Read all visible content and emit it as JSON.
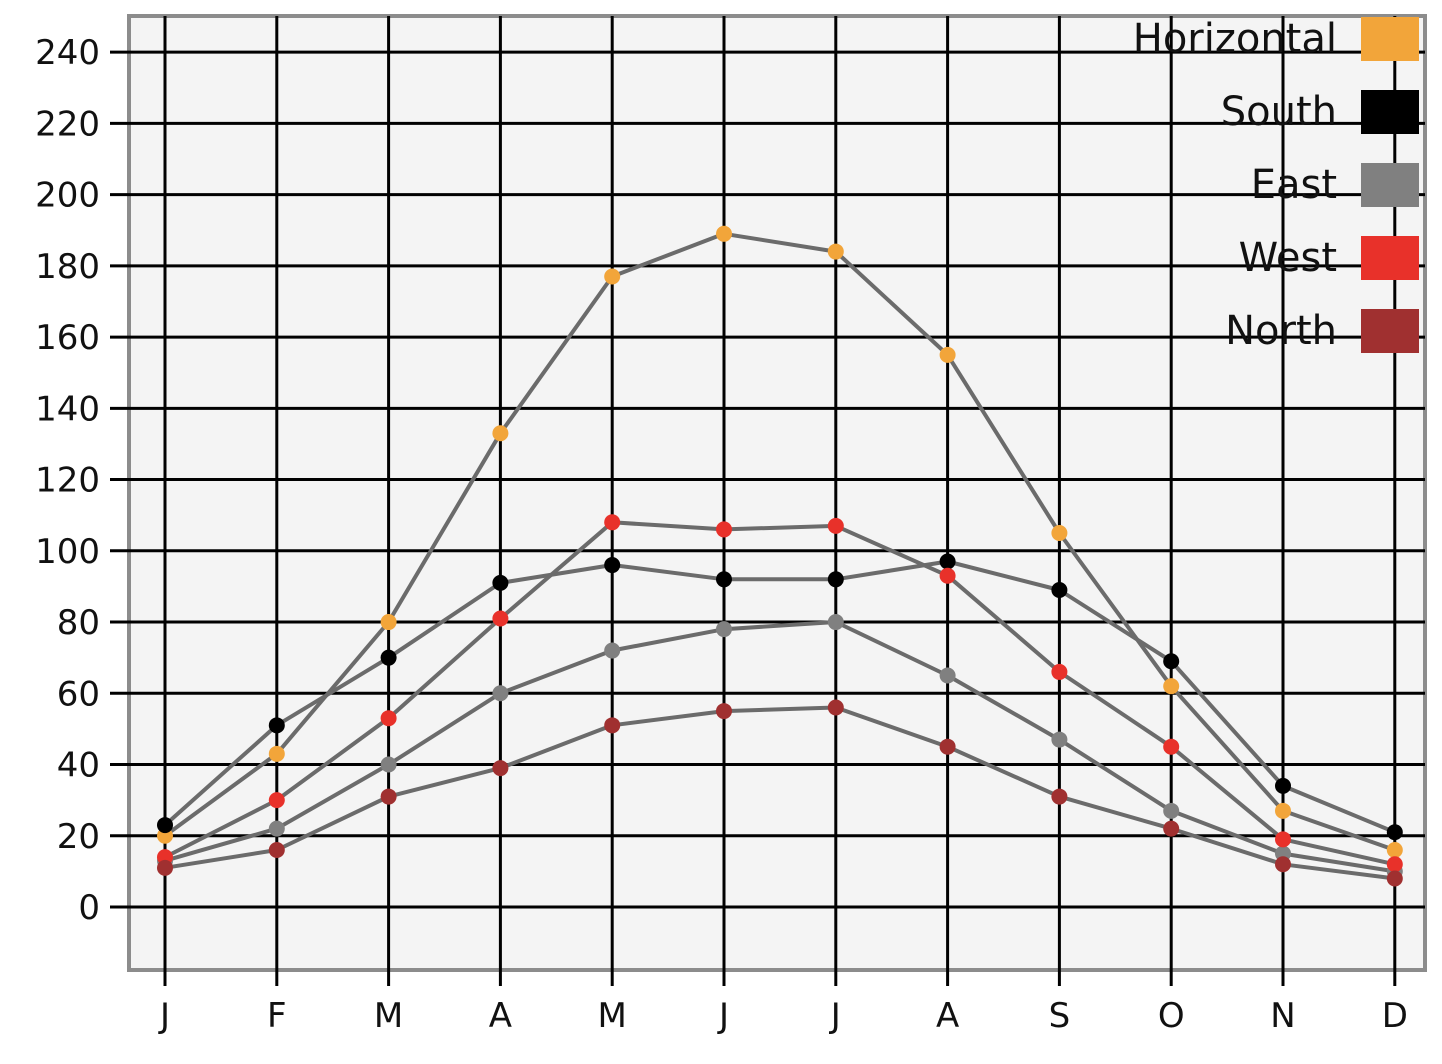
{
  "chart_data": {
    "type": "line",
    "title": "",
    "xlabel": "",
    "ylabel": "",
    "categories": [
      "J",
      "F",
      "M",
      "A",
      "M",
      "J",
      "J",
      "A",
      "S",
      "O",
      "N",
      "D"
    ],
    "yticks": [
      0,
      20,
      40,
      60,
      80,
      100,
      120,
      140,
      160,
      180,
      200,
      220,
      240
    ],
    "ylim": [
      -18,
      250
    ],
    "grid": true,
    "legend_position": "top-right",
    "line_color": "#6b6b6b",
    "series": [
      {
        "name": "Horizontal",
        "color": "#f2a53a",
        "values": [
          20,
          43,
          80,
          133,
          177,
          189,
          184,
          155,
          105,
          62,
          27,
          16
        ]
      },
      {
        "name": "South",
        "color": "#000000",
        "values": [
          23,
          51,
          70,
          91,
          96,
          92,
          92,
          97,
          89,
          69,
          34,
          21
        ]
      },
      {
        "name": "East",
        "color": "#808080",
        "values": [
          13,
          22,
          40,
          60,
          72,
          78,
          80,
          65,
          47,
          27,
          15,
          10
        ]
      },
      {
        "name": "West",
        "color": "#e8312a",
        "values": [
          14,
          30,
          53,
          81,
          108,
          106,
          107,
          93,
          66,
          45,
          19,
          12
        ]
      },
      {
        "name": "North",
        "color": "#a03030",
        "values": [
          11,
          16,
          31,
          39,
          51,
          55,
          56,
          45,
          31,
          22,
          12,
          8
        ]
      }
    ]
  }
}
